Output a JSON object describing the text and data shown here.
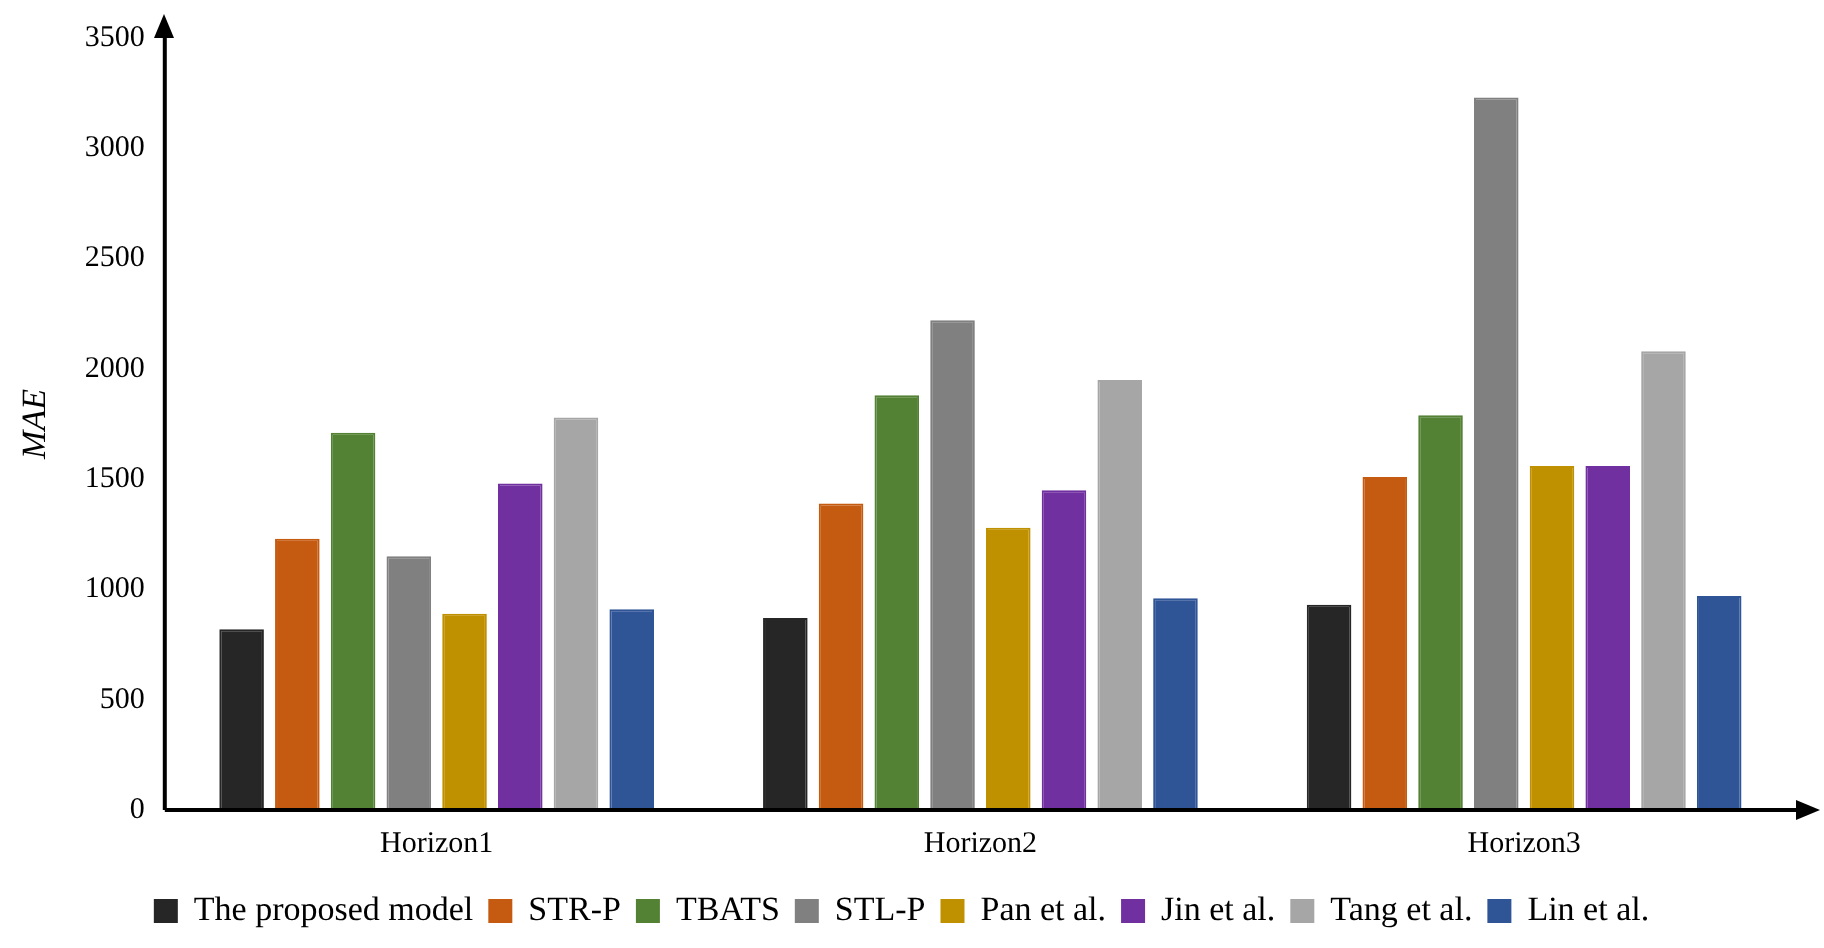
{
  "chart_data": {
    "type": "bar",
    "ylabel": "MAE",
    "categories": [
      "Horizon1",
      "Horizon2",
      "Horizon3"
    ],
    "series": [
      {
        "name": "The proposed model",
        "color": "#262626",
        "values": [
          820,
          870,
          930
        ]
      },
      {
        "name": "STR-P",
        "color": "#c55a11",
        "values": [
          1230,
          1390,
          1510
        ]
      },
      {
        "name": "TBATS",
        "color": "#548235",
        "values": [
          1710,
          1880,
          1790
        ]
      },
      {
        "name": "STL-P",
        "color": "#808080",
        "values": [
          1150,
          2220,
          3230
        ]
      },
      {
        "name": "Pan et al.",
        "color": "#bf9000",
        "values": [
          890,
          1280,
          1560
        ]
      },
      {
        "name": "Jin et al.",
        "color": "#7030a0",
        "values": [
          1480,
          1450,
          1560
        ]
      },
      {
        "name": "Tang et al.",
        "color": "#a6a6a6",
        "values": [
          1780,
          1950,
          2080
        ]
      },
      {
        "name": "Lin et al.",
        "color": "#2f5597",
        "values": [
          910,
          960,
          970
        ]
      }
    ],
    "ylim": [
      0,
      3500
    ],
    "yticks": [
      0,
      500,
      1000,
      1500,
      2000,
      2500,
      3000,
      3500
    ],
    "grid": false,
    "legend": "bottom"
  }
}
